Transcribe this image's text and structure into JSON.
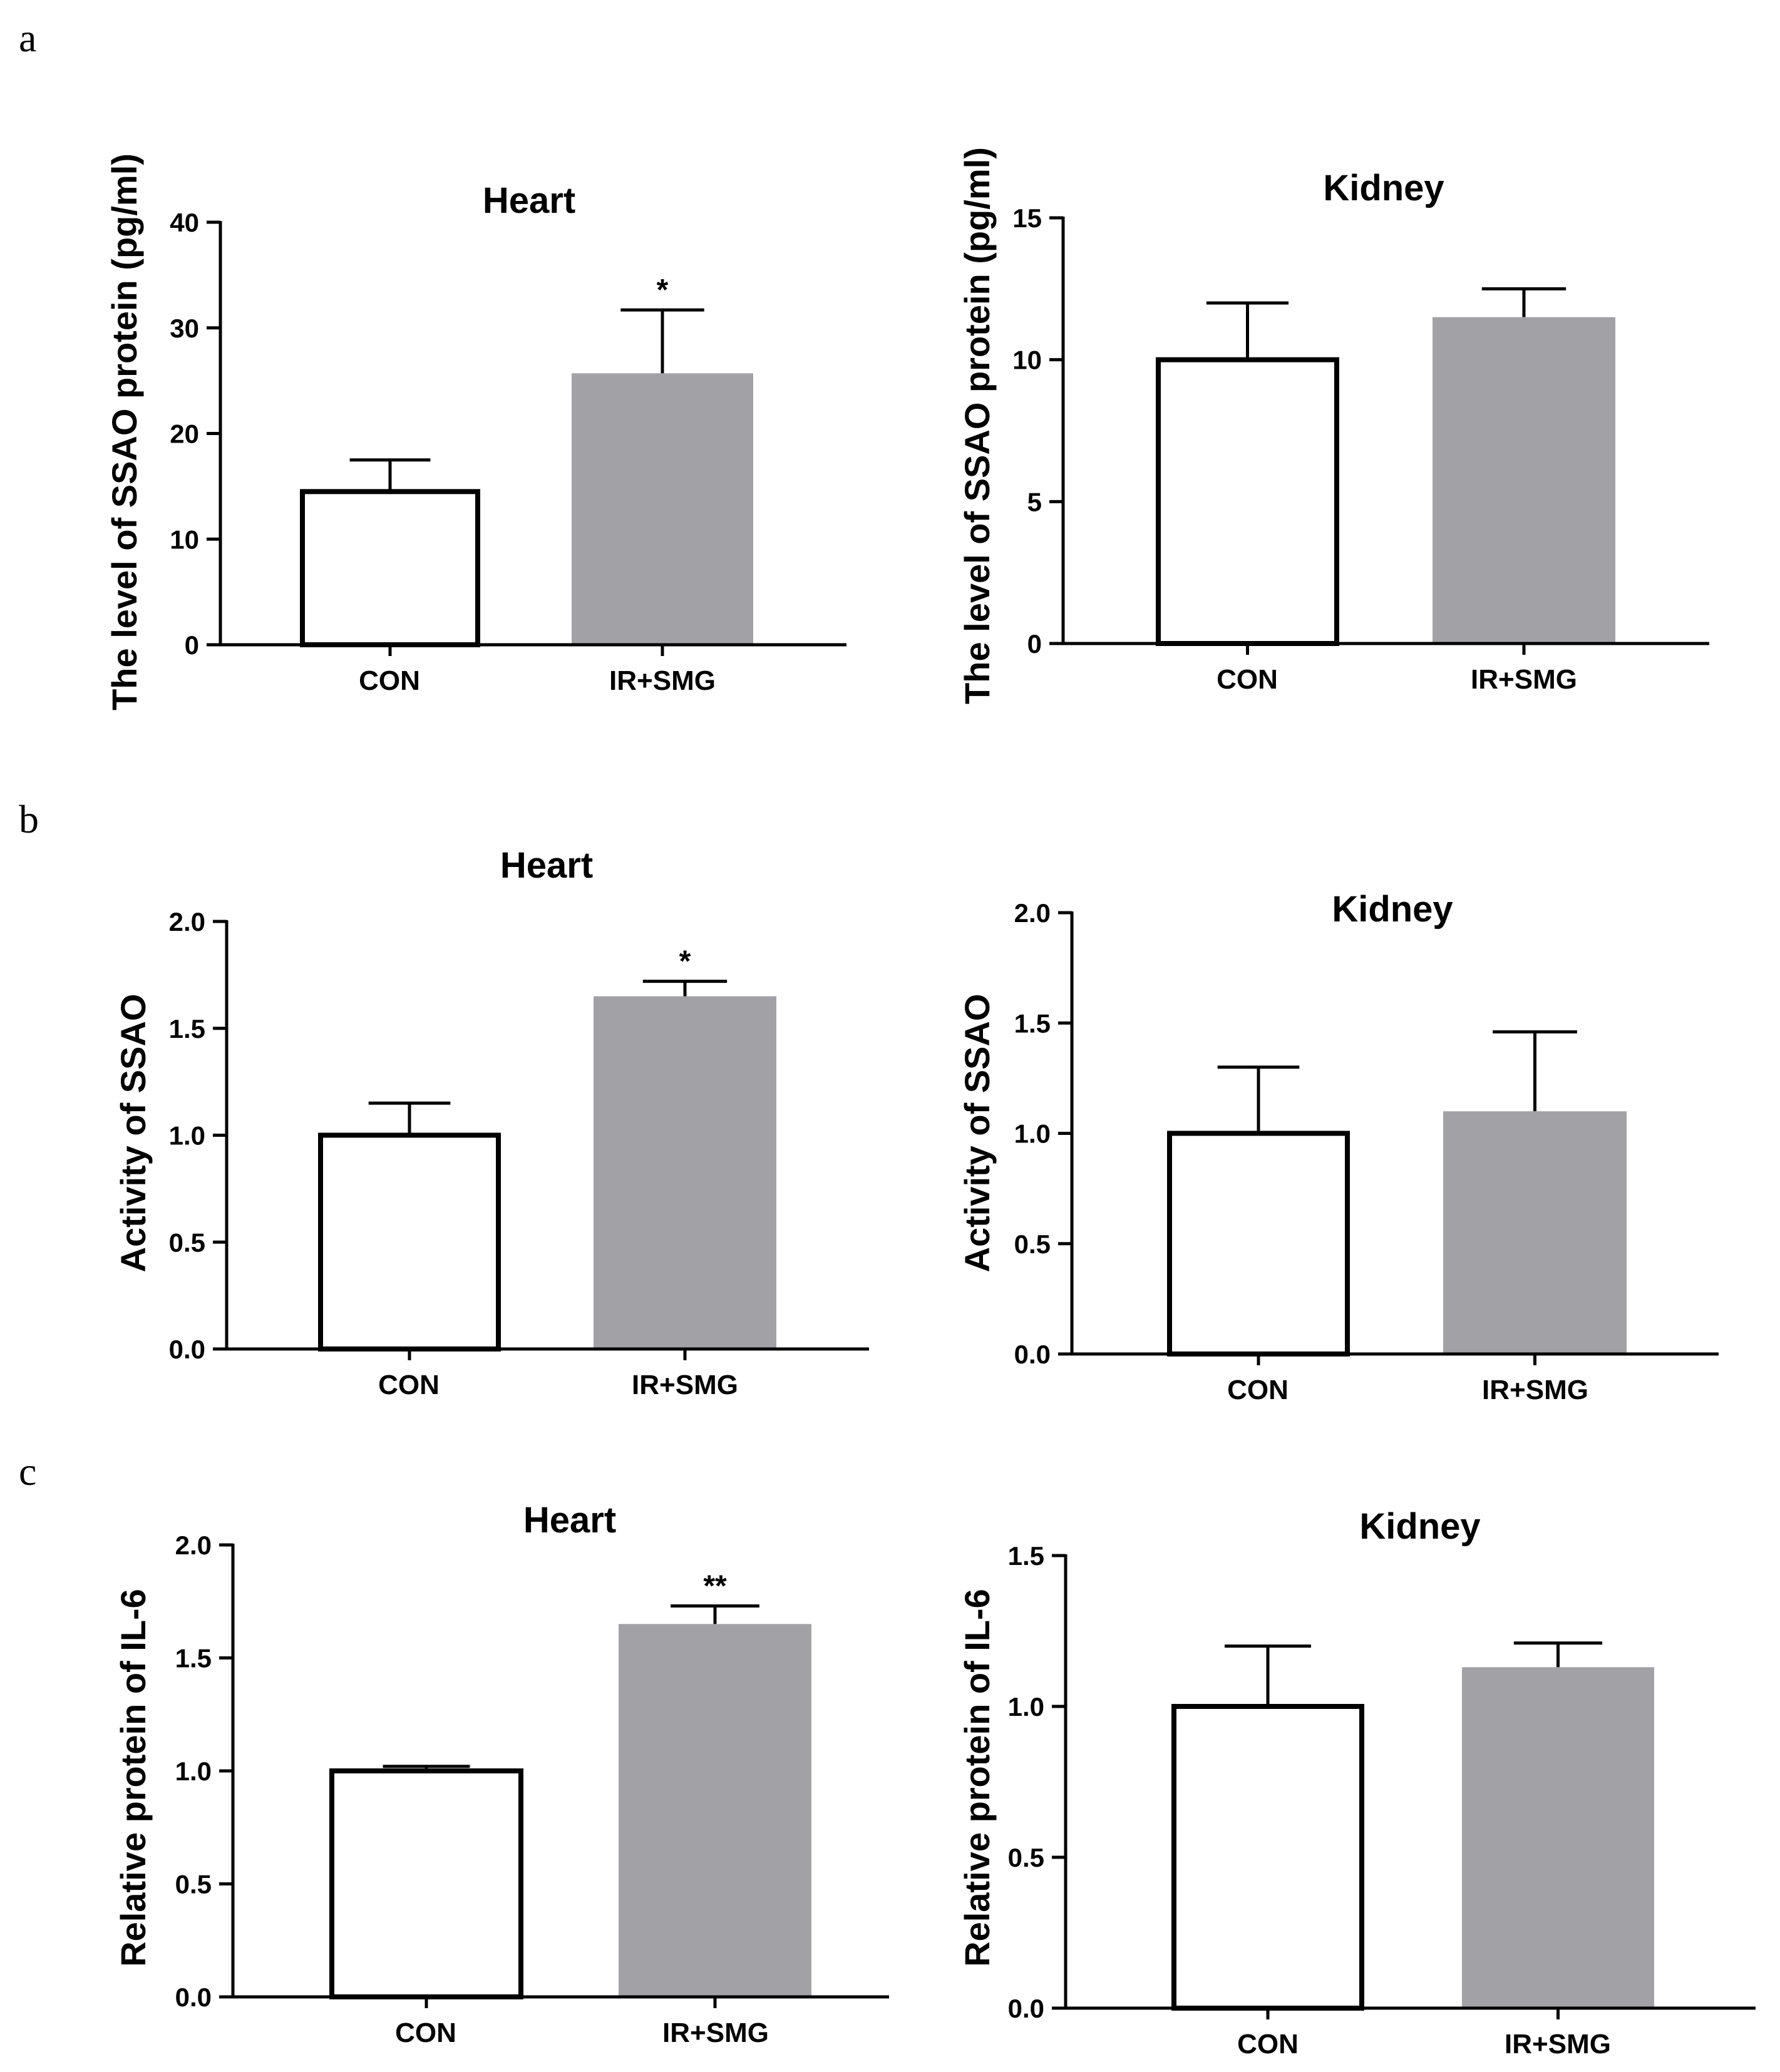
{
  "panels": [
    {
      "letter": "a"
    },
    {
      "letter": "b"
    },
    {
      "letter": "c"
    }
  ],
  "colors": {
    "con_fill": "#ffffff",
    "con_stroke": "#000000",
    "ir_fill": "#a2a1a6",
    "axis": "#000000"
  },
  "chart_data": [
    {
      "type": "bar",
      "title": "Heart",
      "ylabel": "The level of  SSAO protein (pg/ml)",
      "categories": [
        "CON",
        "IR+SMG"
      ],
      "values": [
        14.5,
        25.7
      ],
      "errors": [
        3.0,
        6.0
      ],
      "significance": [
        "",
        "*"
      ],
      "ylim": [
        0,
        40
      ],
      "yticks": [
        "0",
        "10",
        "20",
        "30",
        "40"
      ],
      "grid": false
    },
    {
      "type": "bar",
      "title": "Kidney",
      "ylabel": "The level of  SSAO protein (pg/ml)",
      "categories": [
        "CON",
        "IR+SMG"
      ],
      "values": [
        10.0,
        11.5
      ],
      "errors": [
        2.0,
        1.0
      ],
      "significance": [
        "",
        ""
      ],
      "ylim": [
        0,
        15
      ],
      "yticks": [
        "0",
        "5",
        "10",
        "15"
      ],
      "grid": false
    },
    {
      "type": "bar",
      "title": "Heart",
      "ylabel": "Activity of SSAO",
      "categories": [
        "CON",
        "IR+SMG"
      ],
      "values": [
        1.0,
        1.65
      ],
      "errors": [
        0.15,
        0.07
      ],
      "significance": [
        "",
        "*"
      ],
      "ylim": [
        0,
        2.0
      ],
      "yticks": [
        "0.0",
        "0.5",
        "1.0",
        "1.5",
        "2.0"
      ],
      "grid": false
    },
    {
      "type": "bar",
      "title": "Kidney",
      "ylabel": "Activity of SSAO",
      "categories": [
        "CON",
        "IR+SMG"
      ],
      "values": [
        1.0,
        1.1
      ],
      "errors": [
        0.3,
        0.36
      ],
      "significance": [
        "",
        ""
      ],
      "ylim": [
        0,
        2.0
      ],
      "yticks": [
        "0.0",
        "0.5",
        "1.0",
        "1.5",
        "2.0"
      ],
      "grid": false
    },
    {
      "type": "bar",
      "title": "Heart",
      "ylabel": "Relative protein of IL-6",
      "categories": [
        "CON",
        "IR+SMG"
      ],
      "values": [
        1.0,
        1.65
      ],
      "errors": [
        0.02,
        0.08
      ],
      "significance": [
        "",
        "**"
      ],
      "ylim": [
        0,
        2.0
      ],
      "yticks": [
        "0.0",
        "0.5",
        "1.0",
        "1.5",
        "2.0"
      ],
      "grid": false
    },
    {
      "type": "bar",
      "title": "Kidney",
      "ylabel": "Relative protein of IL-6",
      "categories": [
        "CON",
        "IR+SMG"
      ],
      "values": [
        1.0,
        1.13
      ],
      "errors": [
        0.2,
        0.08
      ],
      "significance": [
        "",
        ""
      ],
      "ylim": [
        0,
        1.5
      ],
      "yticks": [
        "0.0",
        "0.5",
        "1.0",
        "1.5"
      ],
      "grid": false
    }
  ]
}
